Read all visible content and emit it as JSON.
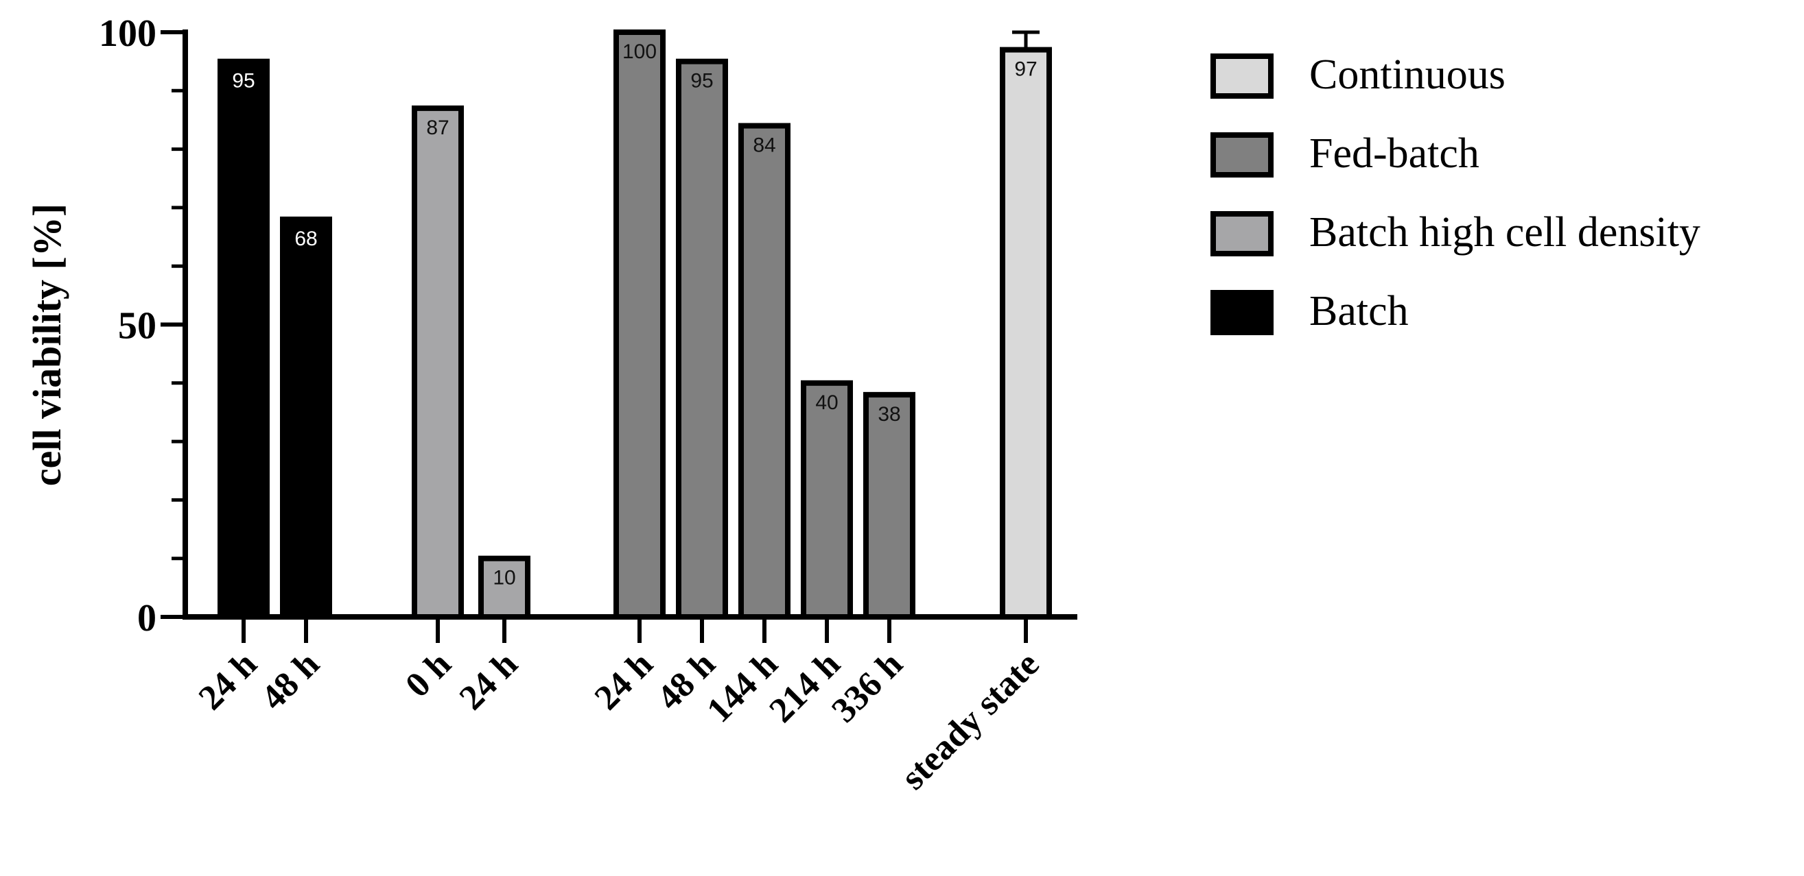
{
  "chart_data": {
    "type": "bar",
    "title": "",
    "xlabel": "",
    "ylabel": "cell viability [%]",
    "ylim": [
      0,
      100
    ],
    "yticks": [
      "0",
      "50",
      "100"
    ],
    "grid": false,
    "legend_position": "right",
    "legend": [
      {
        "name": "Continuous",
        "color": "#d9d9d9"
      },
      {
        "name": "Fed-batch",
        "color": "#808080"
      },
      {
        "name": "Batch high cell density",
        "color": "#a6a6a8"
      },
      {
        "name": "Batch",
        "color": "#000000"
      }
    ],
    "bars": [
      {
        "category": "24 h",
        "series": "Batch",
        "value": 95,
        "label": "95"
      },
      {
        "category": "48 h",
        "series": "Batch",
        "value": 68,
        "label": "68"
      },
      {
        "category": "0 h",
        "series": "Batch high cell density",
        "value": 87,
        "label": "87"
      },
      {
        "category": "24 h",
        "series": "Batch high cell density",
        "value": 10,
        "label": "10"
      },
      {
        "category": "24 h",
        "series": "Fed-batch",
        "value": 100,
        "label": "100"
      },
      {
        "category": "48 h",
        "series": "Fed-batch",
        "value": 95,
        "label": "95"
      },
      {
        "category": "144 h",
        "series": "Fed-batch",
        "value": 84,
        "label": "84"
      },
      {
        "category": "214 h",
        "series": "Fed-batch",
        "value": 40,
        "label": "40"
      },
      {
        "category": "336 h",
        "series": "Fed-batch",
        "value": 38,
        "label": "38"
      },
      {
        "category": "steady state",
        "series": "Continuous",
        "value": 97,
        "label": "97",
        "error_upper": 100
      }
    ]
  }
}
